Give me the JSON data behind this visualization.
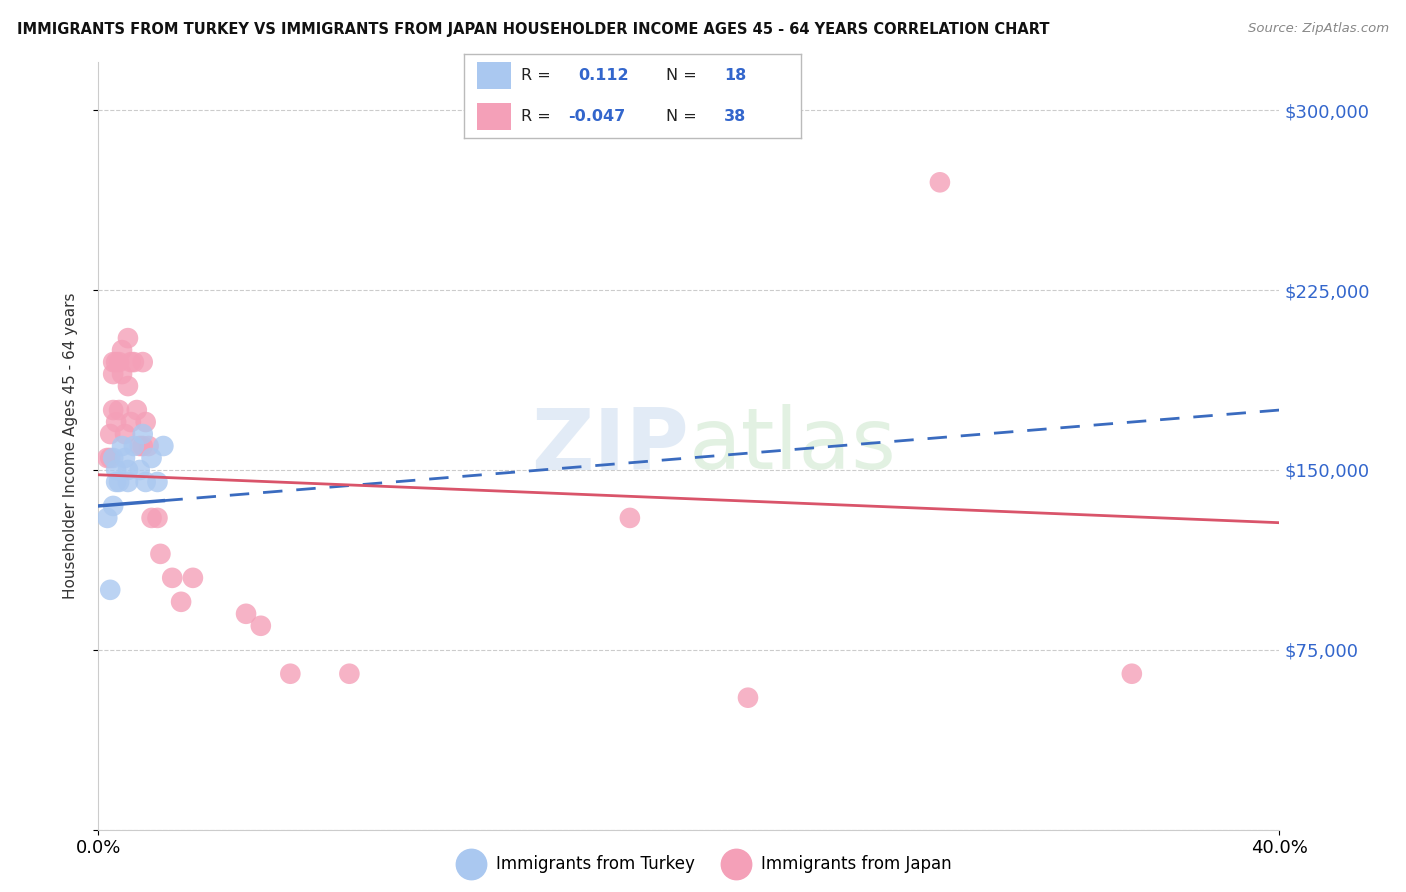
{
  "title": "IMMIGRANTS FROM TURKEY VS IMMIGRANTS FROM JAPAN HOUSEHOLDER INCOME AGES 45 - 64 YEARS CORRELATION CHART",
  "source": "Source: ZipAtlas.com",
  "ylabel": "Householder Income Ages 45 - 64 years",
  "yticks": [
    0,
    75000,
    150000,
    225000,
    300000
  ],
  "ytick_labels": [
    "",
    "$75,000",
    "$150,000",
    "$225,000",
    "$300,000"
  ],
  "xlim": [
    0.0,
    0.4
  ],
  "ylim": [
    0,
    320000
  ],
  "turkey_r": 0.112,
  "turkey_n": 18,
  "japan_r": -0.047,
  "japan_n": 38,
  "turkey_color": "#aac8f0",
  "turkey_line_color": "#3a6bbf",
  "japan_color": "#f4a0b8",
  "japan_line_color": "#d9546a",
  "background_color": "#ffffff",
  "watermark_text": "ZIPatlas",
  "turkey_x": [
    0.003,
    0.004,
    0.005,
    0.005,
    0.006,
    0.006,
    0.007,
    0.008,
    0.009,
    0.01,
    0.01,
    0.012,
    0.014,
    0.015,
    0.016,
    0.018,
    0.02,
    0.022
  ],
  "turkey_y": [
    130000,
    100000,
    155000,
    135000,
    150000,
    145000,
    145000,
    160000,
    155000,
    150000,
    145000,
    160000,
    150000,
    165000,
    145000,
    155000,
    145000,
    160000
  ],
  "japan_x": [
    0.003,
    0.004,
    0.004,
    0.005,
    0.005,
    0.005,
    0.006,
    0.006,
    0.007,
    0.007,
    0.008,
    0.008,
    0.009,
    0.01,
    0.01,
    0.011,
    0.011,
    0.012,
    0.013,
    0.014,
    0.015,
    0.015,
    0.016,
    0.017,
    0.018,
    0.02,
    0.021,
    0.025,
    0.028,
    0.032,
    0.05,
    0.055,
    0.065,
    0.085,
    0.18,
    0.22,
    0.285,
    0.35
  ],
  "japan_y": [
    155000,
    165000,
    155000,
    195000,
    190000,
    175000,
    195000,
    170000,
    195000,
    175000,
    200000,
    190000,
    165000,
    205000,
    185000,
    195000,
    170000,
    195000,
    175000,
    160000,
    195000,
    160000,
    170000,
    160000,
    130000,
    130000,
    115000,
    105000,
    95000,
    105000,
    90000,
    85000,
    65000,
    65000,
    130000,
    55000,
    270000,
    65000
  ],
  "turkey_trendline": [
    [
      0.0,
      0.4
    ],
    [
      135000,
      175000
    ]
  ],
  "japan_trendline": [
    [
      0.0,
      0.4
    ],
    [
      148000,
      128000
    ]
  ],
  "legend_r_label": "R =",
  "legend_n_label": "N =",
  "bottom_legend_turkey": "Immigrants from Turkey",
  "bottom_legend_japan": "Immigrants from Japan"
}
